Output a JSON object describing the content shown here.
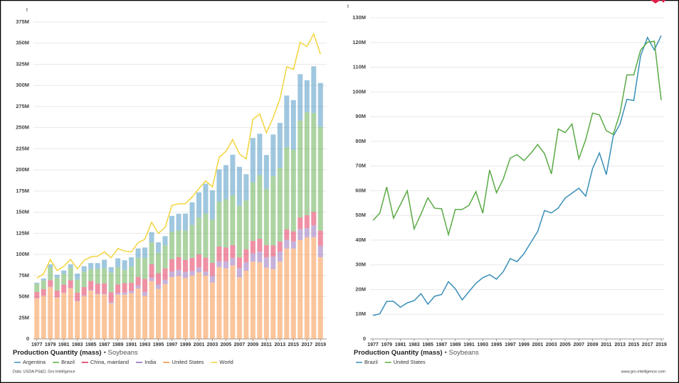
{
  "chart_data": [
    {
      "type": "bar",
      "stacked": true,
      "title": "Production Quantity (mass)",
      "subtitle": "• Soybeans",
      "y_unit": "t",
      "source": "Data: USDA PS&D, Gro Intelligence",
      "grid": true,
      "x": [
        1977,
        1978,
        1979,
        1980,
        1981,
        1982,
        1983,
        1984,
        1985,
        1986,
        1987,
        1988,
        1989,
        1990,
        1991,
        1992,
        1993,
        1994,
        1995,
        1996,
        1997,
        1998,
        1999,
        2000,
        2001,
        2002,
        2003,
        2004,
        2005,
        2006,
        2007,
        2008,
        2009,
        2010,
        2011,
        2012,
        2013,
        2014,
        2015,
        2016,
        2017,
        2018,
        2019
      ],
      "xlim": [
        1976.5,
        2019.5
      ],
      "xticks": [
        1977,
        1979,
        1981,
        1983,
        1985,
        1987,
        1989,
        1991,
        1993,
        1995,
        1997,
        1999,
        2001,
        2003,
        2005,
        2007,
        2009,
        2011,
        2013,
        2015,
        2017,
        2019
      ],
      "ylim": [
        0,
        375000000.0
      ],
      "yticks": [
        0,
        {
          "value": 25000000.0,
          "label": "25M"
        },
        {
          "value": 50000000.0,
          "label": "50M"
        },
        {
          "value": 75000000.0,
          "label": "75M"
        },
        {
          "value": 100000000.0,
          "label": "100M"
        },
        {
          "value": 125000000.0,
          "label": "125M"
        },
        {
          "value": 150000000.0,
          "label": "150M"
        },
        {
          "value": 175000000.0,
          "label": "175M"
        },
        {
          "value": 200000000.0,
          "label": "200M"
        },
        {
          "value": 225000000.0,
          "label": "225M"
        },
        {
          "value": 250000000.0,
          "label": "250M"
        },
        {
          "value": 275000000.0,
          "label": "275M"
        },
        {
          "value": 300000000.0,
          "label": "300M"
        },
        {
          "value": 325000000.0,
          "label": "325M"
        },
        {
          "value": 350000000.0,
          "label": "350M"
        },
        {
          "value": 375000000.0,
          "label": "375M"
        }
      ],
      "series": [
        {
          "name": "Argentina",
          "color": "#3f8fbf",
          "values": [
            1400000.0,
            2500000.0,
            3700000.0,
            3500000.0,
            4000000.0,
            4200000.0,
            7000000.0,
            6500000.0,
            7100000.0,
            7100000.0,
            9900000.0,
            6500000.0,
            10700000.0,
            11300000.0,
            11000000.0,
            11300000.0,
            12400000.0,
            12100000.0,
            12400000.0,
            11000000.0,
            18700000.0,
            20000000.0,
            20200000.0,
            26900000.0,
            30000000.0,
            35500000.0,
            34800000.0,
            38300000.0,
            40500000.0,
            48000000.0,
            46200000.0,
            31000000.0,
            52700000.0,
            49000000.0,
            40100000.0,
            49300000.0,
            53400000.0,
            61400000.0,
            58800000.0,
            55000000.0,
            37800000.0,
            55300000.0,
            52000000.0
          ]
        },
        {
          "name": "Brazil",
          "color": "#5aaa46",
          "values": [
            9500000.0,
            10200000.0,
            15200000.0,
            15200000.0,
            12800000.0,
            14600000.0,
            15500000.0,
            18300000.0,
            14100000.0,
            17300000.0,
            18000000.0,
            23200000.0,
            20300000.0,
            15800000.0,
            19200000.0,
            22500000.0,
            24800000.0,
            26000000.0,
            24200000.0,
            27300000.0,
            32500000.0,
            31300000.0,
            34500000.0,
            39000000.0,
            43500000.0,
            52000000.0,
            51000000.0,
            53000000.0,
            57000000.0,
            59000000.0,
            61000000.0,
            57800000.0,
            69000000.0,
            75300000.0,
            66500000.0,
            82000000.0,
            87000000.0,
            97000000.0,
            96500000.0,
            114600000.0,
            122000000.0,
            117000000.0,
            122800000.0
          ]
        },
        {
          "name": "China, mainland",
          "color": "#e0214a",
          "values": [
            7300000.0,
            7600000.0,
            7500000.0,
            7900000.0,
            9300000.0,
            9000000.0,
            9800000.0,
            9700000.0,
            10500000.0,
            11600000.0,
            12200000.0,
            11600000.0,
            10200000.0,
            11000000.0,
            9700000.0,
            10300000.0,
            15300000.0,
            16000000.0,
            13500000.0,
            13200000.0,
            14700000.0,
            15200000.0,
            14300000.0,
            15400000.0,
            15400000.0,
            16500000.0,
            15400000.0,
            17400000.0,
            16400000.0,
            15100000.0,
            12700000.0,
            15500000.0,
            15000000.0,
            15100000.0,
            14500000.0,
            13100000.0,
            12000000.0,
            12200000.0,
            11800000.0,
            13600000.0,
            15300000.0,
            16000000.0,
            18100000.0
          ]
        },
        {
          "name": "India",
          "color": "#8e63b5",
          "values": [
            300000.0,
            400000.0,
            400000.0,
            400000.0,
            500000.0,
            500000.0,
            600000.0,
            1000000.0,
            1000000.0,
            900000.0,
            900000.0,
            1500000.0,
            1800000.0,
            2600000.0,
            2600000.0,
            3400000.0,
            4800000.0,
            3900000.0,
            5100000.0,
            5400000.0,
            6500000.0,
            7100000.0,
            7100000.0,
            5300000.0,
            5900000.0,
            4700000.0,
            7800000.0,
            6900000.0,
            8300000.0,
            8900000.0,
            10900000.0,
            9900000.0,
            9700000.0,
            12700000.0,
            12200000.0,
            14700000.0,
            11900000.0,
            10500000.0,
            8600000.0,
            13200000.0,
            11000000.0,
            13800000.0,
            13300000.0
          ]
        },
        {
          "name": "United States",
          "color": "#f78c3a",
          "values": [
            48000000.0,
            50900000.0,
            61500000.0,
            48900000.0,
            54400000.0,
            60000000.0,
            44500000.0,
            50600000.0,
            57100000.0,
            52900000.0,
            52700000.0,
            42200000.0,
            52400000.0,
            52400000.0,
            54100000.0,
            59600000.0,
            50900000.0,
            68400000.0,
            59200000.0,
            64800000.0,
            73200000.0,
            74600000.0,
            72200000.0,
            75100000.0,
            78700000.0,
            75000000.0,
            66800000.0,
            85000000.0,
            83500000.0,
            87000000.0,
            72900000.0,
            80700000.0,
            91400000.0,
            90700000.0,
            84300000.0,
            82800000.0,
            91400000.0,
            106900000.0,
            106900000.0,
            116900000.0,
            120100000.0,
            120500000.0,
            96700000.0
          ]
        },
        {
          "name": "World",
          "color": "#f2d43b",
          "type": "line",
          "values": [
            72000000.0,
            77000000.0,
            94000000.0,
            81000000.0,
            86000000.0,
            94000000.0,
            83000000.0,
            93000000.0,
            97000000.0,
            98000000.0,
            103000000.0,
            96000000.0,
            107000000.0,
            104000000.0,
            103000000.0,
            114000000.0,
            118000000.0,
            138000000.0,
            125000000.0,
            132000000.0,
            158000000.0,
            160000000.0,
            160000000.0,
            168000000.0,
            178000000.0,
            187000000.0,
            180000000.0,
            215000000.0,
            222000000.0,
            236000000.0,
            219000000.0,
            213000000.0,
            260000000.0,
            266000000.0,
            244000000.0,
            262000000.0,
            284000000.0,
            322000000.0,
            319000000.0,
            351000000.0,
            346000000.0,
            361000000.0,
            337000000.0
          ]
        }
      ]
    },
    {
      "type": "line",
      "title": "Production Quantity (mass)",
      "subtitle": "• Soybeans",
      "y_unit": "t",
      "credit": "www.gro-intelligence.com",
      "grid": true,
      "x": [
        1977,
        1978,
        1979,
        1980,
        1981,
        1982,
        1983,
        1984,
        1985,
        1986,
        1987,
        1988,
        1989,
        1990,
        1991,
        1992,
        1993,
        1994,
        1995,
        1996,
        1997,
        1998,
        1999,
        2000,
        2001,
        2002,
        2003,
        2004,
        2005,
        2006,
        2007,
        2008,
        2009,
        2010,
        2011,
        2012,
        2013,
        2014,
        2015,
        2016,
        2017,
        2018,
        2019
      ],
      "xlim": [
        1977,
        2019
      ],
      "xticks": [
        1977,
        1979,
        1981,
        1983,
        1985,
        1987,
        1989,
        1991,
        1993,
        1995,
        1997,
        1999,
        2001,
        2003,
        2005,
        2007,
        2009,
        2011,
        2013,
        2015,
        2017,
        2019
      ],
      "ylim": [
        0,
        130000000.0
      ],
      "yticks": [
        0,
        {
          "value": 10000000.0,
          "label": "10M"
        },
        {
          "value": 20000000.0,
          "label": "20M"
        },
        {
          "value": 30000000.0,
          "label": "30M"
        },
        {
          "value": 40000000.0,
          "label": "40M"
        },
        {
          "value": 50000000.0,
          "label": "50M"
        },
        {
          "value": 60000000.0,
          "label": "60M"
        },
        {
          "value": 70000000.0,
          "label": "70M"
        },
        {
          "value": 80000000.0,
          "label": "80M"
        },
        {
          "value": 90000000.0,
          "label": "90M"
        },
        {
          "value": 100000000.0,
          "label": "100M"
        },
        {
          "value": 110000000.0,
          "label": "110M"
        },
        {
          "value": 120000000.0,
          "label": "120M"
        },
        {
          "value": 130000000.0,
          "label": "130M"
        }
      ],
      "series": [
        {
          "name": "Brazil",
          "color": "#3a8fb7",
          "values": [
            9500000.0,
            10200000.0,
            15200000.0,
            15200000.0,
            12800000.0,
            14600000.0,
            15500000.0,
            18300000.0,
            14100000.0,
            17300000.0,
            18000000.0,
            23200000.0,
            20300000.0,
            15800000.0,
            19200000.0,
            22500000.0,
            24800000.0,
            26000000.0,
            24200000.0,
            27300000.0,
            32500000.0,
            31300000.0,
            34500000.0,
            39000000.0,
            43500000.0,
            52000000.0,
            51000000.0,
            53000000.0,
            57000000.0,
            59000000.0,
            61000000.0,
            57800000.0,
            69000000.0,
            75300000.0,
            66500000.0,
            82000000.0,
            87000000.0,
            97000000.0,
            96500000.0,
            114600000.0,
            122000000.0,
            117000000.0,
            122800000.0
          ]
        },
        {
          "name": "United States",
          "color": "#5aaa46",
          "values": [
            48000000.0,
            50900000.0,
            61500000.0,
            48900000.0,
            54400000.0,
            60000000.0,
            44500000.0,
            50600000.0,
            57100000.0,
            52900000.0,
            52700000.0,
            42200000.0,
            52400000.0,
            52400000.0,
            54100000.0,
            59600000.0,
            50900000.0,
            68400000.0,
            59200000.0,
            64800000.0,
            73200000.0,
            74600000.0,
            72200000.0,
            75100000.0,
            78700000.0,
            75000000.0,
            66800000.0,
            85000000.0,
            83500000.0,
            87000000.0,
            72900000.0,
            80700000.0,
            91400000.0,
            90700000.0,
            84300000.0,
            82800000.0,
            91400000.0,
            106900000.0,
            106900000.0,
            116900000.0,
            120100000.0,
            120500000.0,
            96700000.0
          ]
        }
      ]
    }
  ]
}
